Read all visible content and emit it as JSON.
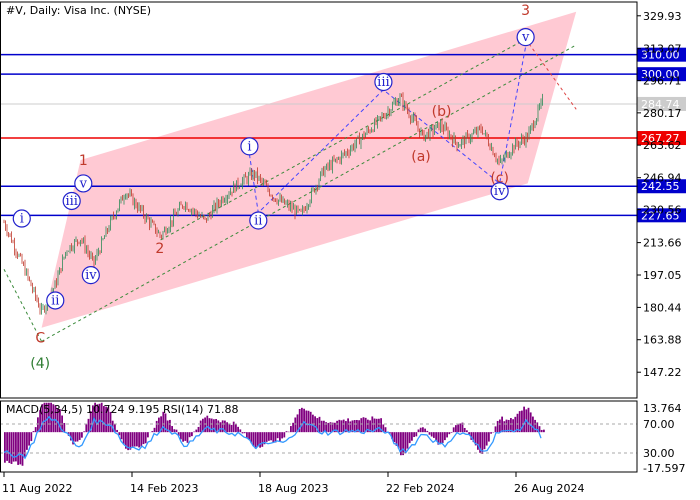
{
  "header": {
    "title": "#V, Daily:  Visa Inc. (NYSE)"
  },
  "colors": {
    "channel": "#ffc0cb",
    "level_blue": "#0000cc",
    "level_red": "#ee0000",
    "bull_candle": "#2e8b57",
    "bear_candle": "#c0392b",
    "price_path": "#2a6a2a",
    "macd_hist": "#800080",
    "rsi_line": "#3399ff",
    "wave_blue": "#2222cc",
    "wave_red": "#c0392b",
    "wave_green": "#2e7d32"
  },
  "chart_data": {
    "type": "candlestick",
    "symbol": "V",
    "timeframe": "Daily",
    "y_axis": {
      "ticks": [
        "329.93",
        "313.07",
        "296.71",
        "280.17",
        "263.62",
        "246.94",
        "230.56",
        "213.66",
        "197.05",
        "180.44",
        "163.88",
        "147.22"
      ],
      "ylim": [
        134.0,
        337.0
      ]
    },
    "x_axis": {
      "labels": [
        "11 Aug 2022",
        "14 Feb 2023",
        "18 Aug 2023",
        "22 Feb 2024",
        "26 Aug 2024"
      ]
    },
    "price_path": [
      {
        "date": "2022-08-11",
        "price": 224
      },
      {
        "date": "2022-09-10",
        "price": 200
      },
      {
        "date": "2022-10-05",
        "price": 178
      },
      {
        "date": "2022-10-25",
        "price": 192
      },
      {
        "date": "2022-11-10",
        "price": 210
      },
      {
        "date": "2022-12-01",
        "price": 216
      },
      {
        "date": "2022-12-20",
        "price": 203
      },
      {
        "date": "2023-01-15",
        "price": 225
      },
      {
        "date": "2023-02-05",
        "price": 240
      },
      {
        "date": "2023-03-10",
        "price": 225
      },
      {
        "date": "2023-03-28",
        "price": 217
      },
      {
        "date": "2023-05-01",
        "price": 234
      },
      {
        "date": "2023-06-01",
        "price": 225
      },
      {
        "date": "2023-06-25",
        "price": 236
      },
      {
        "date": "2023-07-20",
        "price": 244
      },
      {
        "date": "2023-08-12",
        "price": 249
      },
      {
        "date": "2023-09-10",
        "price": 237
      },
      {
        "date": "2023-10-20",
        "price": 228
      },
      {
        "date": "2023-11-20",
        "price": 250
      },
      {
        "date": "2023-12-25",
        "price": 260
      },
      {
        "date": "2024-02-10",
        "price": 276
      },
      {
        "date": "2024-03-12",
        "price": 288
      },
      {
        "date": "2024-04-15",
        "price": 268
      },
      {
        "date": "2024-05-10",
        "price": 274
      },
      {
        "date": "2024-06-05",
        "price": 264
      },
      {
        "date": "2024-07-10",
        "price": 272
      },
      {
        "date": "2024-08-05",
        "price": 254
      },
      {
        "date": "2024-08-25",
        "price": 263
      },
      {
        "date": "2024-09-15",
        "price": 268
      },
      {
        "date": "2024-10-08",
        "price": 287
      }
    ],
    "levels": [
      {
        "name": "310.00",
        "value": 310.0,
        "color": "#0000cc"
      },
      {
        "name": "300.00",
        "value": 300.0,
        "color": "#0000cc"
      },
      {
        "name": "284.74",
        "value": 284.74,
        "color": "#cccccc"
      },
      {
        "name": "267.27",
        "value": 267.27,
        "color": "#ee0000"
      },
      {
        "name": "242.55",
        "value": 242.55,
        "color": "#0000cc"
      },
      {
        "name": "227.65",
        "value": 227.65,
        "color": "#0000cc"
      }
    ],
    "channel": [
      {
        "date": "2022-10-05",
        "price": 170
      },
      {
        "date": "2022-12-01",
        "price": 256
      },
      {
        "date": "2024-11-25",
        "price": 332
      },
      {
        "date": "2024-09-15",
        "price": 244
      }
    ],
    "wave_labels": [
      {
        "text": "1",
        "date": "2022-12-05",
        "price": 256,
        "style": "red"
      },
      {
        "text": "2",
        "date": "2023-03-27",
        "price": 211,
        "style": "red"
      },
      {
        "text": "3",
        "date": "2024-09-12",
        "price": 333,
        "style": "red"
      },
      {
        "text": "C",
        "date": "2022-10-03",
        "price": 165,
        "style": "red"
      },
      {
        "text": "(4)",
        "date": "2022-10-03",
        "price": 152,
        "style": "green"
      },
      {
        "text": "(a)",
        "date": "2024-04-12",
        "price": 258,
        "style": "red"
      },
      {
        "text": "(b)",
        "date": "2024-05-12",
        "price": 281,
        "style": "red"
      },
      {
        "text": "(c)",
        "date": "2024-08-05",
        "price": 247,
        "style": "red"
      },
      {
        "text": "i",
        "date": "2022-09-06",
        "price": 226,
        "style": "blue-circle"
      },
      {
        "text": "ii",
        "date": "2022-10-25",
        "price": 184,
        "style": "blue-circle"
      },
      {
        "text": "iii",
        "date": "2022-11-18",
        "price": 235,
        "style": "blue-circle"
      },
      {
        "text": "iv",
        "date": "2022-12-16",
        "price": 197,
        "style": "blue-circle"
      },
      {
        "text": "v",
        "date": "2022-12-05",
        "price": 244,
        "style": "blue-circle"
      },
      {
        "text": "i",
        "date": "2023-08-05",
        "price": 263,
        "style": "blue-circle"
      },
      {
        "text": "ii",
        "date": "2023-08-18",
        "price": 225,
        "style": "blue-circle"
      },
      {
        "text": "iii",
        "date": "2024-02-17",
        "price": 296,
        "style": "blue-circle"
      },
      {
        "text": "iv",
        "date": "2024-08-05",
        "price": 240,
        "style": "blue-circle"
      },
      {
        "text": "v",
        "date": "2024-09-12",
        "price": 319,
        "style": "blue-circle"
      }
    ],
    "indicator": {
      "label": "MACD(5,34,5) 10.724 9.195 RSI(14) 71.88",
      "ticks": [
        "13.764",
        "70.00",
        "30.00",
        "-17.597"
      ],
      "ylim": [
        -17.597,
        13.764
      ]
    }
  }
}
